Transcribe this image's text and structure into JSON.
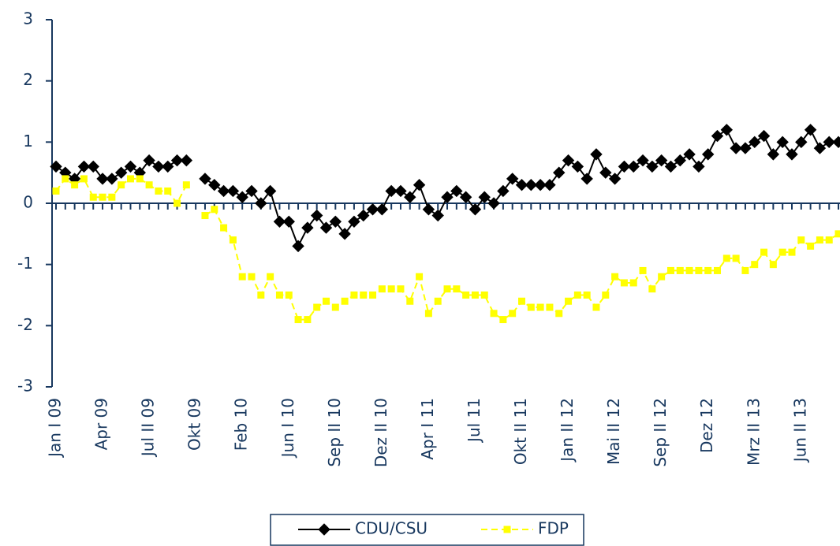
{
  "chart_data": {
    "type": "line",
    "categories": [
      "Jan I 09",
      null,
      null,
      null,
      null,
      "Apr 09",
      null,
      null,
      null,
      null,
      "Jul II 09",
      null,
      null,
      null,
      null,
      "Okt 09",
      null,
      null,
      null,
      null,
      "Feb 10",
      null,
      null,
      null,
      null,
      "Jun I 10",
      null,
      null,
      null,
      null,
      "Sep II 10",
      null,
      null,
      null,
      null,
      "Dez II 10",
      null,
      null,
      null,
      null,
      "Apr I 11",
      null,
      null,
      null,
      null,
      "Jul 11",
      null,
      null,
      null,
      null,
      "Okt II 11",
      null,
      null,
      null,
      null,
      "Jan II 12",
      null,
      null,
      null,
      null,
      "Mai II 12",
      null,
      null,
      null,
      null,
      "Sep II 12",
      null,
      null,
      null,
      null,
      "Dez 12",
      null,
      null,
      null,
      null,
      "Mrz II 13",
      null,
      null,
      null,
      null,
      "Jun II 13",
      null,
      null,
      null,
      null
    ],
    "series": [
      {
        "name": "CDU/CSU",
        "color": "#000000",
        "marker": "diamond",
        "line_style": "solid",
        "values": [
          0.6,
          0.5,
          0.4,
          0.6,
          0.6,
          0.4,
          0.4,
          0.5,
          0.6,
          0.5,
          0.7,
          0.6,
          0.6,
          0.7,
          0.7,
          null,
          0.4,
          0.3,
          0.2,
          0.2,
          0.1,
          0.2,
          0.0,
          0.2,
          -0.3,
          -0.3,
          -0.7,
          -0.4,
          -0.2,
          -0.4,
          -0.3,
          -0.5,
          -0.3,
          -0.2,
          -0.1,
          -0.1,
          0.2,
          0.2,
          0.1,
          0.3,
          -0.1,
          -0.2,
          0.1,
          0.2,
          0.1,
          -0.1,
          0.1,
          0.0,
          0.2,
          0.4,
          0.3,
          0.3,
          0.3,
          0.3,
          0.5,
          0.7,
          0.6,
          0.4,
          0.8,
          0.5,
          0.4,
          0.6,
          0.6,
          0.7,
          0.6,
          0.7,
          0.6,
          0.7,
          0.8,
          0.6,
          0.8,
          1.1,
          1.2,
          0.9,
          0.9,
          1.0,
          1.1,
          0.8,
          1.0,
          0.8,
          1.0,
          1.2,
          0.9,
          1.0,
          1.0
        ]
      },
      {
        "name": "FDP",
        "color": "#ffff00",
        "marker": "square",
        "line_style": "dashed",
        "values": [
          0.2,
          0.4,
          0.3,
          0.4,
          0.1,
          0.1,
          0.1,
          0.3,
          0.4,
          0.4,
          0.3,
          0.2,
          0.2,
          0.0,
          0.3,
          null,
          -0.2,
          -0.1,
          -0.4,
          -0.6,
          -1.2,
          -1.2,
          -1.5,
          -1.2,
          -1.5,
          -1.5,
          -1.9,
          -1.9,
          -1.7,
          -1.6,
          -1.7,
          -1.6,
          -1.5,
          -1.5,
          -1.5,
          -1.4,
          -1.4,
          -1.4,
          -1.6,
          -1.2,
          -1.8,
          -1.6,
          -1.4,
          -1.4,
          -1.5,
          -1.5,
          -1.5,
          -1.8,
          -1.9,
          -1.8,
          -1.6,
          -1.7,
          -1.7,
          -1.7,
          -1.8,
          -1.6,
          -1.5,
          -1.5,
          -1.7,
          -1.5,
          -1.2,
          -1.3,
          -1.3,
          -1.1,
          -1.4,
          -1.2,
          -1.1,
          -1.1,
          -1.1,
          -1.1,
          -1.1,
          -1.1,
          -0.9,
          -0.9,
          -1.1,
          -1.0,
          -0.8,
          -1.0,
          -0.8,
          -0.8,
          -0.6,
          -0.7,
          -0.6,
          -0.6,
          -0.5
        ]
      }
    ],
    "ylim": [
      -3,
      3
    ],
    "yticks": [
      -3,
      -2,
      -1,
      0,
      1,
      2,
      3
    ],
    "grid": false,
    "legend": "bottom"
  }
}
